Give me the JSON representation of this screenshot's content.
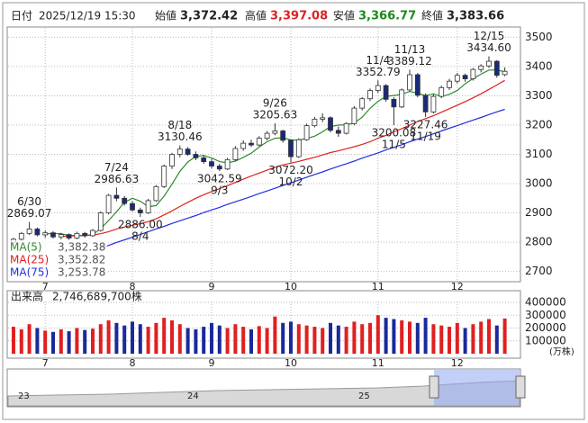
{
  "header": {
    "date_label": "日付",
    "date": "2025/12/19 15:30",
    "fields": [
      {
        "label": "始値",
        "value": "3,372.42"
      },
      {
        "label": "高値",
        "value": "3,397.08"
      },
      {
        "label": "安値",
        "value": "3,366.77"
      },
      {
        "label": "終値",
        "value": "3,383.66"
      }
    ]
  },
  "chart_data": {
    "type": "candlestick",
    "categories": [
      null,
      null,
      null,
      null,
      "7",
      null,
      null,
      null,
      null,
      null,
      null,
      null,
      null,
      null,
      null,
      "8",
      null,
      null,
      null,
      null,
      null,
      null,
      null,
      null,
      null,
      "9",
      null,
      null,
      null,
      null,
      null,
      null,
      null,
      null,
      null,
      "10",
      null,
      null,
      null,
      null,
      null,
      null,
      null,
      null,
      null,
      null,
      "11",
      null,
      null,
      null,
      null,
      null,
      null,
      null,
      null,
      null,
      "12",
      null,
      null,
      null,
      null,
      null,
      null
    ],
    "ohlc": [
      [
        2800,
        2815,
        2795,
        2810
      ],
      [
        2810,
        2835,
        2805,
        2830
      ],
      [
        2830,
        2869.07,
        2825,
        2845
      ],
      [
        2845,
        2850,
        2820,
        2825
      ],
      [
        2825,
        2840,
        2815,
        2832
      ],
      [
        2832,
        2838,
        2812,
        2818
      ],
      [
        2818,
        2832,
        2810,
        2826
      ],
      [
        2826,
        2830,
        2808,
        2814
      ],
      [
        2814,
        2836,
        2810,
        2830
      ],
      [
        2830,
        2835,
        2815,
        2822
      ],
      [
        2822,
        2845,
        2818,
        2840
      ],
      [
        2840,
        2905,
        2836,
        2900
      ],
      [
        2900,
        2965,
        2895,
        2960
      ],
      [
        2960,
        2986.63,
        2940,
        2950
      ],
      [
        2950,
        2958,
        2925,
        2932
      ],
      [
        2932,
        2940,
        2905,
        2910
      ],
      [
        2910,
        2918,
        2886,
        2900
      ],
      [
        2900,
        2948,
        2896,
        2942
      ],
      [
        2942,
        2995,
        2938,
        2990
      ],
      [
        2990,
        3065,
        2985,
        3060
      ],
      [
        3060,
        3105,
        3050,
        3100
      ],
      [
        3100,
        3130.46,
        3090,
        3118
      ],
      [
        3118,
        3125,
        3095,
        3100
      ],
      [
        3100,
        3110,
        3080,
        3088
      ],
      [
        3088,
        3098,
        3068,
        3075
      ],
      [
        3075,
        3085,
        3052,
        3060
      ],
      [
        3060,
        3068,
        3042.59,
        3050
      ],
      [
        3050,
        3088,
        3046,
        3082
      ],
      [
        3082,
        3128,
        3078,
        3120
      ],
      [
        3120,
        3148,
        3112,
        3138
      ],
      [
        3138,
        3150,
        3125,
        3132
      ],
      [
        3132,
        3162,
        3128,
        3155
      ],
      [
        3155,
        3180,
        3148,
        3172
      ],
      [
        3172,
        3205.63,
        3165,
        3180
      ],
      [
        3180,
        3184,
        3140,
        3148
      ],
      [
        3148,
        3152,
        3072.2,
        3092
      ],
      [
        3092,
        3155,
        3088,
        3150
      ],
      [
        3150,
        3205,
        3146,
        3198
      ],
      [
        3198,
        3228,
        3192,
        3220
      ],
      [
        3220,
        3240,
        3210,
        3225
      ],
      [
        3225,
        3230,
        3175,
        3182
      ],
      [
        3182,
        3195,
        3160,
        3172
      ],
      [
        3172,
        3210,
        3168,
        3205
      ],
      [
        3205,
        3265,
        3200,
        3258
      ],
      [
        3258,
        3295,
        3250,
        3290
      ],
      [
        3290,
        3325,
        3282,
        3318
      ],
      [
        3318,
        3352.79,
        3310,
        3335
      ],
      [
        3335,
        3340,
        3280,
        3288
      ],
      [
        3288,
        3295,
        3200.08,
        3262
      ],
      [
        3262,
        3325,
        3258,
        3320
      ],
      [
        3320,
        3389.12,
        3315,
        3372
      ],
      [
        3372,
        3378,
        3295,
        3302
      ],
      [
        3302,
        3308,
        3227.46,
        3245
      ],
      [
        3245,
        3305,
        3240,
        3298
      ],
      [
        3298,
        3335,
        3292,
        3328
      ],
      [
        3328,
        3358,
        3320,
        3350
      ],
      [
        3350,
        3378,
        3342,
        3370
      ],
      [
        3370,
        3376,
        3348,
        3358
      ],
      [
        3358,
        3395,
        3352,
        3390
      ],
      [
        3390,
        3408,
        3380,
        3402
      ],
      [
        3402,
        3434.6,
        3395,
        3418
      ],
      [
        3418,
        3422,
        3362,
        3370
      ],
      [
        3372.42,
        3397.08,
        3366.77,
        3383.66
      ]
    ],
    "up_color": "#ffffff",
    "down_color": "#1a2a7a",
    "outline": "#333333",
    "series": [
      {
        "name": "MA(5)",
        "color": "#2e8b2e",
        "legend_value": "3,382.38",
        "values": [
          null,
          null,
          null,
          null,
          2828,
          2830,
          2829,
          2823,
          2823,
          2822,
          2826,
          2846,
          2874,
          2904,
          2936,
          2950,
          2940,
          2921,
          2925,
          2957,
          2998,
          3042,
          3074,
          3093,
          3096,
          3088,
          3075,
          3071,
          3077,
          3090,
          3104,
          3125,
          3143,
          3155,
          3157,
          3149,
          3149,
          3154,
          3162,
          3177,
          3195,
          3200,
          3201,
          3207,
          3227,
          3257,
          3281,
          3298,
          3301,
          3305,
          3315,
          3309,
          3300,
          3307,
          3297,
          3305,
          3318,
          3341,
          3359,
          3374,
          3388,
          3388,
          3382.38
        ]
      },
      {
        "name": "MA(25)",
        "color": "#e02020",
        "legend_value": "3,352.82",
        "values": [
          null,
          null,
          null,
          null,
          null,
          null,
          2820,
          2821,
          2822,
          2823,
          2825,
          2829,
          2836,
          2845,
          2852,
          2858,
          2863,
          2870,
          2880,
          2893,
          2907,
          2922,
          2936,
          2950,
          2962,
          2973,
          2983,
          2993,
          3004,
          3015,
          3026,
          3036,
          3046,
          3056,
          3064,
          3070,
          3076,
          3083,
          3090,
          3098,
          3106,
          3112,
          3119,
          3126,
          3134,
          3143,
          3155,
          3165,
          3177,
          3188,
          3200,
          3212,
          3222,
          3232,
          3244,
          3256,
          3268,
          3280,
          3293,
          3307,
          3322,
          3337,
          3352.82
        ]
      },
      {
        "name": "MA(75)",
        "color": "#2030e0",
        "legend_value": "3,253.78",
        "values": [
          null,
          null,
          null,
          null,
          null,
          null,
          null,
          null,
          null,
          null,
          null,
          2780,
          2789,
          2799,
          2808,
          2817,
          2826,
          2836,
          2845,
          2854,
          2864,
          2873,
          2882,
          2891,
          2901,
          2910,
          2919,
          2929,
          2938,
          2947,
          2956,
          2966,
          2975,
          2984,
          2994,
          3003,
          3012,
          3022,
          3031,
          3040,
          3050,
          3059,
          3068,
          3077,
          3087,
          3096,
          3105,
          3115,
          3124,
          3133,
          3143,
          3152,
          3161,
          3170,
          3180,
          3189,
          3198,
          3208,
          3217,
          3226,
          3236,
          3245,
          3253.78
        ]
      }
    ],
    "ylim": [
      2665,
      3535
    ],
    "yticks": [
      2700,
      2800,
      2900,
      3000,
      3100,
      3200,
      3300,
      3400,
      3500
    ],
    "grid": true,
    "annotations": [
      {
        "date": "6/30",
        "value": 2869.07,
        "label": "2869.07"
      },
      {
        "date": "7/24",
        "value": 2986.63,
        "label": "2986.63"
      },
      {
        "date": "8/4",
        "value": 2886,
        "label": "2886.00"
      },
      {
        "date": "8/18",
        "value": 3130.46,
        "label": "3130.46"
      },
      {
        "date": "9/3",
        "value": 3042.59,
        "label": "3042.59"
      },
      {
        "date": "9/26",
        "value": 3205.63,
        "label": "3205.63"
      },
      {
        "date": "10/2",
        "value": 3072.2,
        "label": "3072.20"
      },
      {
        "date": "11/4",
        "value": 3352.79,
        "label": "3352.79"
      },
      {
        "date": "11/5",
        "value": 3200.08,
        "label": "3200.08"
      },
      {
        "date": "11/13",
        "value": 3389.12,
        "label": "3389.12"
      },
      {
        "date": "11/19",
        "value": 3227.46,
        "label": "3227.46"
      },
      {
        "date": "12/15",
        "value": 3434.6,
        "label": "3434.60"
      }
    ],
    "volume": {
      "title": "出来高",
      "total": "2,746,689,700株",
      "unit": "(万株)",
      "ylim": [
        0,
        425000
      ],
      "yticks": [
        100000,
        200000,
        300000,
        400000
      ],
      "values": [
        210000,
        190000,
        230000,
        200000,
        180000,
        170000,
        190000,
        175000,
        200000,
        185000,
        195000,
        230000,
        260000,
        240000,
        220000,
        250000,
        230000,
        210000,
        240000,
        280000,
        260000,
        230000,
        200000,
        190000,
        210000,
        240000,
        220000,
        200000,
        230000,
        210000,
        190000,
        215000,
        200000,
        290000,
        240000,
        250000,
        230000,
        220000,
        210000,
        200000,
        240000,
        220000,
        210000,
        250000,
        230000,
        240000,
        300000,
        280000,
        270000,
        260000,
        250000,
        240000,
        280000,
        230000,
        220000,
        210000,
        240000,
        200000,
        230000,
        250000,
        270000,
        220000,
        274668.97
      ],
      "up_color": "#e02020",
      "down_color": "#1a2a9a"
    },
    "navigator": {
      "labels": [
        "23",
        "24",
        "25"
      ]
    }
  }
}
